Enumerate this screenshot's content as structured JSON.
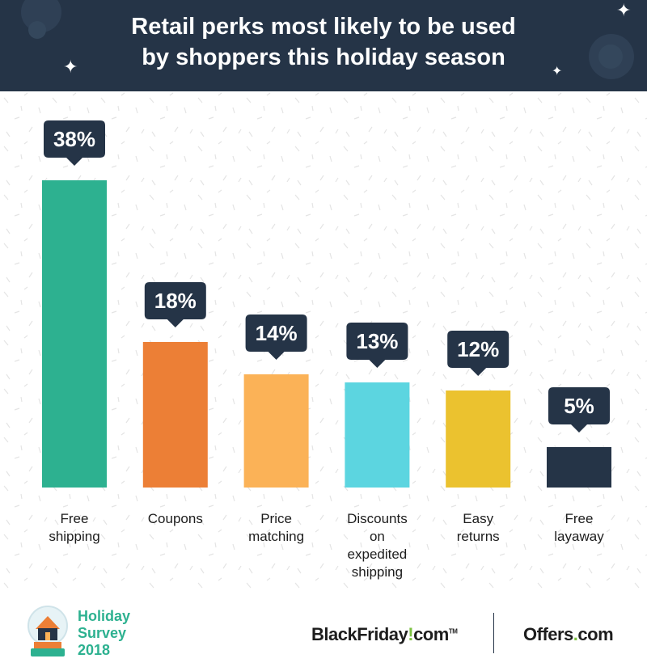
{
  "title": "Retail perks most likely to be used by shoppers this holiday season",
  "chart_data": {
    "type": "bar",
    "title": "Retail perks most likely to be used by shoppers this holiday season",
    "categories": [
      [
        "Free",
        "shipping"
      ],
      [
        "Coupons"
      ],
      [
        "Price",
        "matching"
      ],
      [
        "Discounts",
        "on",
        "expedited",
        "shipping"
      ],
      [
        "Easy",
        "returns"
      ],
      [
        "Free",
        "layaway"
      ]
    ],
    "values": [
      38,
      18,
      14,
      13,
      12,
      5
    ],
    "value_labels": [
      "38%",
      "18%",
      "14%",
      "13%",
      "12%",
      "5%"
    ],
    "colors": [
      "#2db190",
      "#ec7f36",
      "#fbb257",
      "#5cd5e0",
      "#ebc22f",
      "#253447"
    ],
    "label_bubble_color": "#253447",
    "unit": "%",
    "ylim": [
      0,
      40
    ],
    "grid": false,
    "legend": "none"
  },
  "footer": {
    "survey_line1": "Holiday",
    "survey_line2": "Survey",
    "survey_line3": "2018",
    "blackfriday_part1": "BlackFriday",
    "blackfriday_bang": "!",
    "blackfriday_part2": "com",
    "blackfriday_tm": "TM",
    "offers_part1": "Offers",
    "offers_dot": ".",
    "offers_part2": "com",
    "survey_icon": "snow-globe-house-icon"
  }
}
